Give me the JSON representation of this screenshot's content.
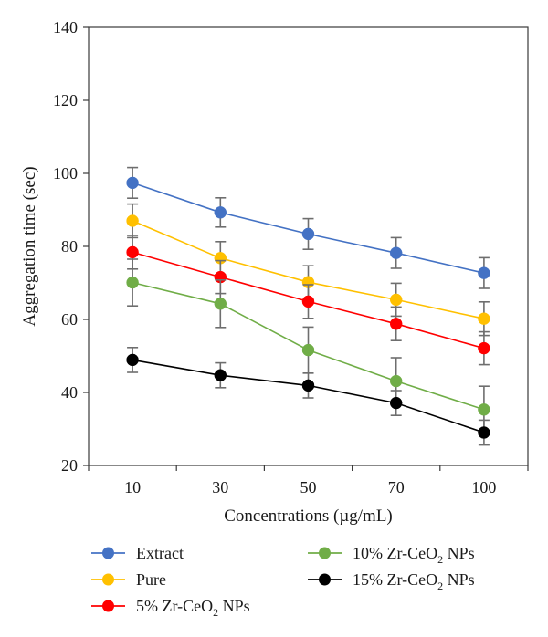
{
  "chart_data": {
    "type": "line",
    "xlabel": "Concentrations (µg/mL)",
    "ylabel": "Aggregation time (sec)",
    "categories": [
      "10",
      "30",
      "50",
      "70",
      "100"
    ],
    "ylim": [
      20,
      140
    ],
    "yticks": [
      20,
      40,
      60,
      80,
      100,
      120,
      140
    ],
    "grid": false,
    "legend_position": "bottom",
    "series": [
      {
        "name": "Extract",
        "color": "#4472c4",
        "values": [
          97.4,
          89.3,
          83.4,
          78.2,
          72.7
        ],
        "errors": [
          4.2,
          4.0,
          4.2,
          4.2,
          4.2
        ]
      },
      {
        "name": "Pure",
        "color": "#ffc000",
        "values": [
          87.0,
          76.8,
          70.2,
          65.4,
          60.2
        ],
        "errors": [
          4.6,
          4.5,
          4.5,
          4.5,
          4.6
        ]
      },
      {
        "name": "5% Zr-CeO2 NPs",
        "name_parts": [
          "5% Zr-CeO",
          "2",
          " NPs"
        ],
        "color": "#ff0000",
        "values": [
          78.4,
          71.6,
          64.9,
          58.8,
          52.1
        ],
        "errors": [
          4.6,
          4.5,
          4.6,
          4.6,
          4.5
        ]
      },
      {
        "name": "10% Zr-CeO2 NPs",
        "name_parts": [
          "10% Zr-CeO",
          "2",
          " NPs"
        ],
        "color": "#70ad47",
        "values": [
          70.1,
          64.3,
          51.6,
          43.1,
          35.3
        ],
        "errors": [
          6.4,
          6.5,
          6.3,
          6.4,
          6.4
        ]
      },
      {
        "name": "15% Zr-CeO2 NPs",
        "name_parts": [
          "15% Zr-CeO",
          "2",
          " NPs"
        ],
        "color": "#000000",
        "values": [
          48.9,
          44.7,
          41.9,
          37.1,
          29.0
        ],
        "errors": [
          3.4,
          3.4,
          3.4,
          3.4,
          3.4
        ]
      }
    ]
  }
}
